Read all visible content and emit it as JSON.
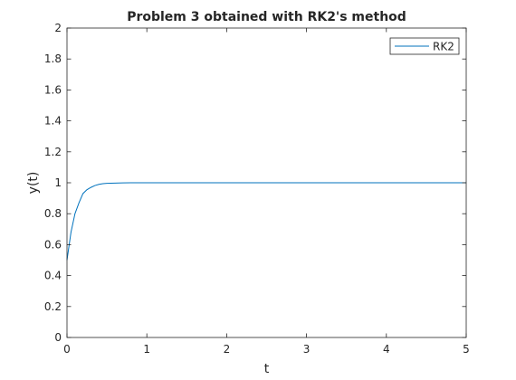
{
  "chart_data": {
    "type": "line",
    "title": "Problem 3 obtained with RK2's method",
    "xlabel": "t",
    "ylabel": "y(t)",
    "xlim": [
      0,
      5
    ],
    "ylim": [
      0,
      2
    ],
    "xticks": [
      0,
      1,
      2,
      3,
      4,
      5
    ],
    "yticks": [
      0,
      0.2,
      0.4,
      0.6,
      0.8,
      1,
      1.2,
      1.4,
      1.6,
      1.8,
      2
    ],
    "xtick_labels": [
      "0",
      "1",
      "2",
      "3",
      "4",
      "5"
    ],
    "ytick_labels": [
      "0",
      "0.2",
      "0.4",
      "0.6",
      "0.8",
      "1",
      "1.2",
      "1.4",
      "1.6",
      "1.8",
      "2"
    ],
    "grid": false,
    "legend_position": "top-right",
    "series": [
      {
        "name": "RK2",
        "color": "#0072BD",
        "x": [
          0,
          0.05,
          0.1,
          0.15,
          0.2,
          0.25,
          0.3,
          0.35,
          0.4,
          0.45,
          0.5,
          0.6,
          0.7,
          0.8,
          1.0,
          1.5,
          2.0,
          3.0,
          4.0,
          5.0
        ],
        "y": [
          0.5,
          0.68,
          0.8,
          0.87,
          0.93,
          0.955,
          0.97,
          0.982,
          0.99,
          0.994,
          0.996,
          0.998,
          0.999,
          1.0,
          1.0,
          1.0,
          1.0,
          1.0,
          1.0,
          1.0
        ]
      }
    ]
  }
}
